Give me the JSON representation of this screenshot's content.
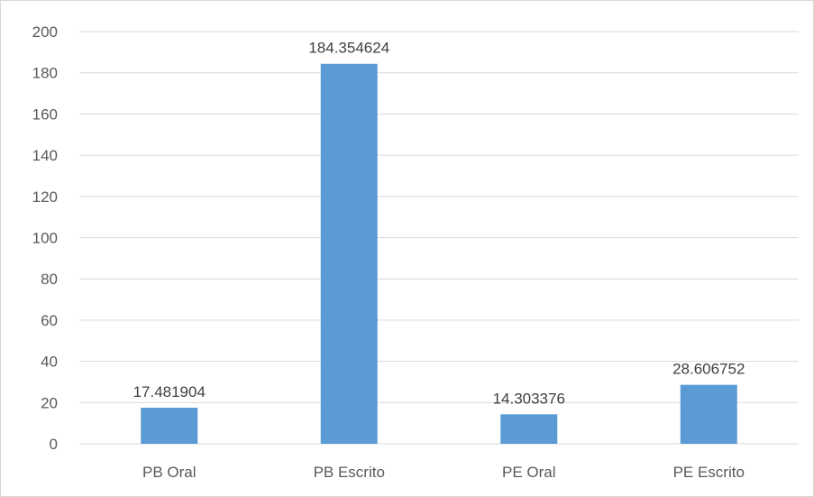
{
  "chart_data": {
    "type": "bar",
    "title": "",
    "xlabel": "",
    "ylabel": "",
    "categories": [
      "PB Oral",
      "PB Escrito",
      "PE Oral",
      "PE Escrito"
    ],
    "values": [
      17.481904,
      184.354624,
      14.303376,
      28.606752
    ],
    "data_labels": [
      "17.481904",
      "184.354624",
      "14.303376",
      "28.606752"
    ],
    "ylim": [
      0,
      200
    ],
    "yticks": [
      0,
      20,
      40,
      60,
      80,
      100,
      120,
      140,
      160,
      180,
      200
    ],
    "grid": true,
    "legend": "none",
    "colors": {
      "bar": "#5b9bd5",
      "grid": "#d9d9d9",
      "text": "#595959"
    }
  }
}
